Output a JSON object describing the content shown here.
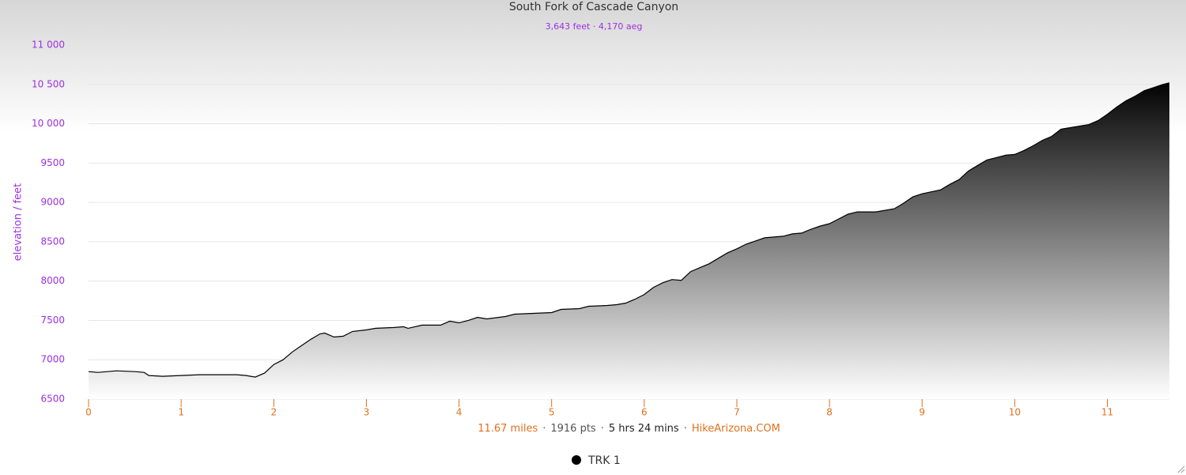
{
  "chart_data": {
    "type": "area",
    "title": "South Fork of Cascade Canyon",
    "subtitle": "3,643 feet · 4,170 aeg",
    "y_label": "elevation / feet",
    "x": [
      0,
      0.1,
      0.3,
      0.5,
      0.6,
      0.65,
      0.8,
      1.0,
      1.2,
      1.4,
      1.6,
      1.7,
      1.8,
      1.9,
      2.0,
      2.1,
      2.2,
      2.3,
      2.4,
      2.5,
      2.55,
      2.65,
      2.75,
      2.85,
      3.0,
      3.1,
      3.3,
      3.4,
      3.45,
      3.6,
      3.8,
      3.9,
      4.0,
      4.1,
      4.2,
      4.3,
      4.5,
      4.6,
      4.8,
      5.0,
      5.1,
      5.3,
      5.4,
      5.6,
      5.7,
      5.8,
      5.9,
      6.0,
      6.1,
      6.2,
      6.3,
      6.4,
      6.5,
      6.6,
      6.7,
      6.8,
      6.9,
      7.0,
      7.1,
      7.2,
      7.3,
      7.5,
      7.6,
      7.7,
      7.8,
      7.9,
      8.0,
      8.1,
      8.2,
      8.3,
      8.5,
      8.7,
      8.8,
      8.9,
      9.0,
      9.2,
      9.3,
      9.4,
      9.5,
      9.6,
      9.7,
      9.8,
      9.9,
      10.0,
      10.1,
      10.2,
      10.3,
      10.4,
      10.5,
      10.6,
      10.8,
      10.9,
      11.0,
      11.1,
      11.2,
      11.3,
      11.4,
      11.5,
      11.6,
      11.67
    ],
    "series": [
      {
        "name": "TRK 1",
        "color": "#000000",
        "values": [
          6850,
          6840,
          6860,
          6850,
          6840,
          6800,
          6790,
          6800,
          6810,
          6810,
          6810,
          6800,
          6780,
          6830,
          6940,
          7000,
          7100,
          7180,
          7260,
          7330,
          7340,
          7290,
          7300,
          7360,
          7380,
          7400,
          7410,
          7420,
          7400,
          7440,
          7440,
          7490,
          7470,
          7500,
          7540,
          7520,
          7550,
          7580,
          7590,
          7600,
          7640,
          7650,
          7680,
          7690,
          7700,
          7720,
          7770,
          7830,
          7920,
          7980,
          8020,
          8010,
          8120,
          8170,
          8220,
          8290,
          8360,
          8410,
          8470,
          8510,
          8550,
          8570,
          8600,
          8610,
          8660,
          8700,
          8730,
          8790,
          8850,
          8880,
          8880,
          8920,
          8990,
          9070,
          9110,
          9160,
          9230,
          9290,
          9400,
          9470,
          9540,
          9570,
          9600,
          9610,
          9660,
          9720,
          9790,
          9840,
          9930,
          9950,
          9990,
          10040,
          10120,
          10210,
          10290,
          10350,
          10420,
          10460,
          10500,
          10520
        ]
      }
    ],
    "xlim": [
      0,
      11.67
    ],
    "ylim": [
      6500,
      11000
    ],
    "xticks": [
      0,
      1,
      2,
      3,
      4,
      5,
      6,
      7,
      8,
      9,
      10,
      11
    ],
    "yticks": [
      6500,
      7000,
      7500,
      8000,
      8500,
      9000,
      9500,
      {
        "value": 10000,
        "label": "10 000"
      },
      {
        "value": 10500,
        "label": "10 500"
      },
      {
        "value": 11000,
        "label": "11 000"
      }
    ],
    "grid": true,
    "footer": [
      {
        "text": "11.67 miles",
        "color": "#e0701e"
      },
      {
        "text": "1916 pts",
        "color": "#555555"
      },
      {
        "text": "5 hrs 24 mins",
        "color": "#222222"
      },
      {
        "text": "HikeArizona.COM",
        "color": "#e0701e"
      }
    ],
    "footer_separator": "·"
  }
}
